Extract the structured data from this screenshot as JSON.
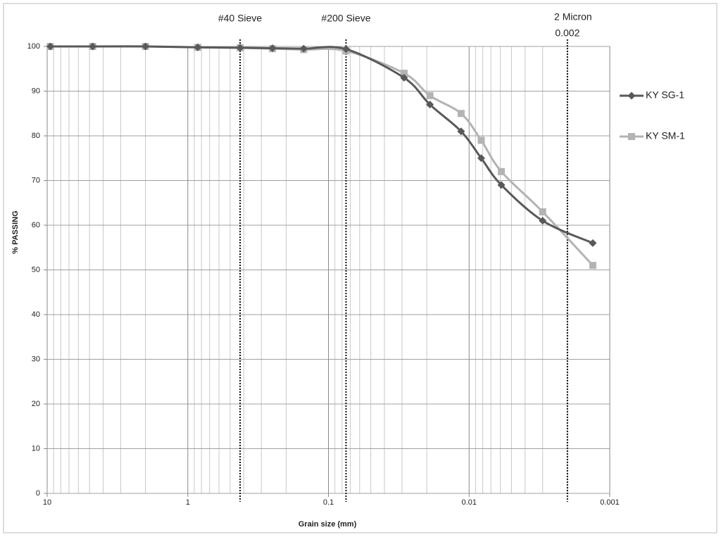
{
  "chart_data": {
    "type": "line",
    "x_label": "Grain size (mm)",
    "y_label": "% PASSING",
    "x": [
      9.5,
      4.75,
      2.0,
      0.85,
      0.425,
      0.25,
      0.15,
      0.075,
      0.029,
      0.019,
      0.0114,
      0.0082,
      0.0059,
      0.003,
      0.00132
    ],
    "series": [
      {
        "name": "KY SG-1",
        "color": "#595959",
        "marker": "diamond",
        "values": [
          100,
          100,
          100,
          99.8,
          99.7,
          99.6,
          99.5,
          99.4,
          93,
          87,
          81,
          75,
          69,
          61,
          56
        ]
      },
      {
        "name": "KY SM-1",
        "color": "#b3b3b3",
        "marker": "square",
        "values": [
          100,
          100,
          100,
          99.8,
          99.7,
          99.5,
          99.3,
          99,
          94,
          89,
          85,
          79,
          72,
          63,
          51
        ]
      }
    ],
    "xscale": "log",
    "xlim": [
      10,
      0.001
    ],
    "xticks": [
      10,
      1,
      0.1,
      0.01,
      0.001
    ],
    "ylim": [
      0,
      100
    ],
    "yticks": [
      0,
      10,
      20,
      30,
      40,
      50,
      60,
      70,
      80,
      90,
      100
    ],
    "grid": true,
    "legend": "right",
    "reference_lines": [
      {
        "value": 0.425,
        "label": "#40 Sieve"
      },
      {
        "value": 0.075,
        "label": "#200 Sieve"
      },
      {
        "value": 0.002,
        "label": "2 Micron",
        "sublabel": "0.002"
      }
    ]
  }
}
